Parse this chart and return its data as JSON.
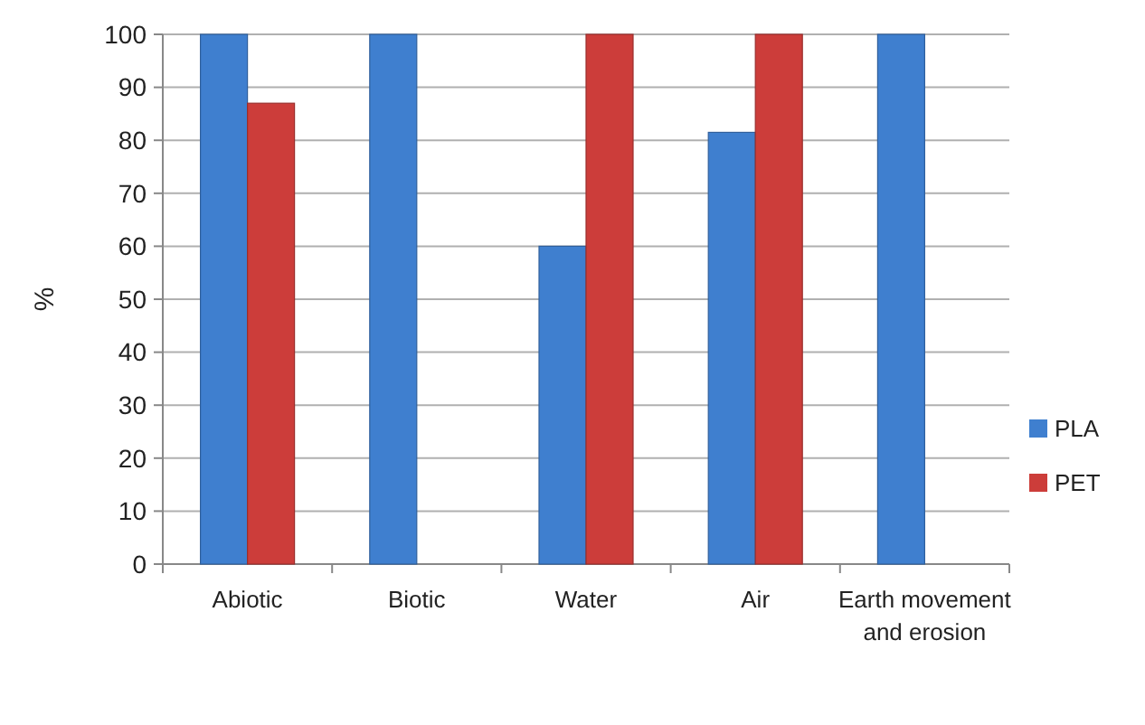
{
  "chart_data": {
    "type": "bar",
    "ylabel": "%",
    "categories": [
      "Abiotic",
      "Biotic",
      "Water",
      "Air",
      "Earth movement and erosion"
    ],
    "series": [
      {
        "name": "PLA",
        "color": "#3f7fcf",
        "values": [
          100,
          100,
          60,
          81.5,
          100
        ]
      },
      {
        "name": "PET",
        "color": "#cc3d3a",
        "values": [
          87,
          null,
          100,
          100,
          null
        ]
      }
    ],
    "ylim": [
      0,
      100
    ],
    "yticks": [
      0,
      10,
      20,
      30,
      40,
      50,
      60,
      70,
      80,
      90,
      100
    ],
    "grid": "y",
    "legend": "right"
  }
}
